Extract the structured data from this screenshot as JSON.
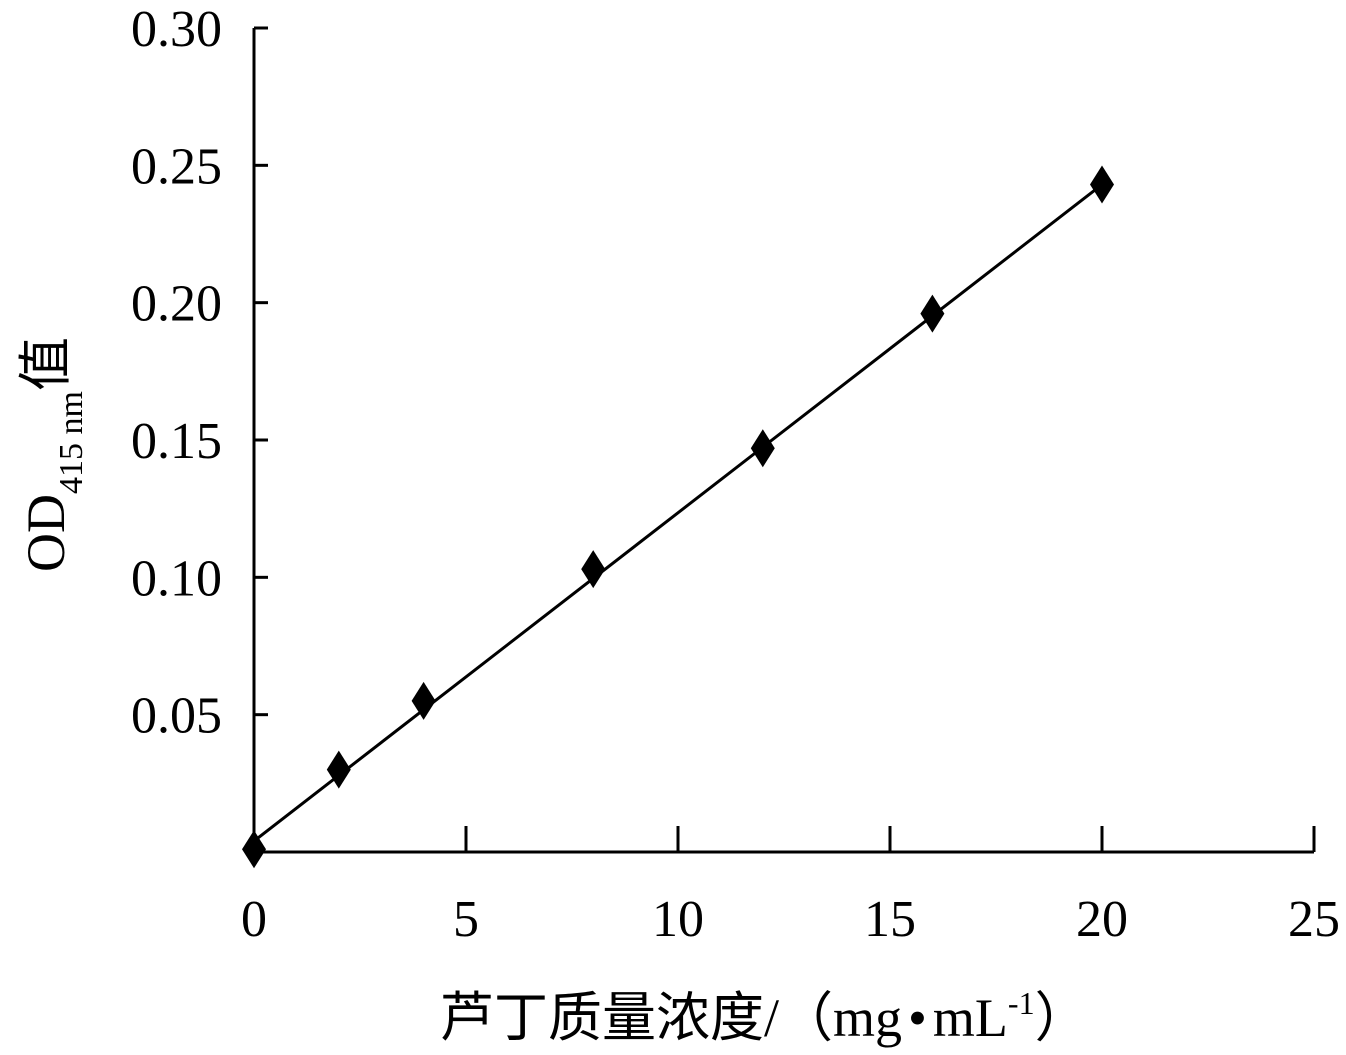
{
  "chart_data": {
    "type": "scatter",
    "x_ticks": [
      "0",
      "5",
      "10",
      "15",
      "20",
      "25"
    ],
    "y_ticks": [
      "0.30",
      "0.25",
      "0.20",
      "0.15",
      "0.10",
      "0.05"
    ],
    "xlim": [
      0,
      25
    ],
    "ylim": [
      0,
      0.3
    ],
    "xlabel": "芦丁质量浓度/（mg·mL-1）",
    "xlabel_main": "芦丁质量浓度/（mg",
    "xlabel_dot": "•",
    "xlabel_unit": "mL",
    "xlabel_sup": "-1",
    "xlabel_close": "）",
    "ylabel": "OD415 nm值",
    "ylabel_main": "OD",
    "ylabel_sub": "415 nm",
    "ylabel_suffix": "值",
    "grid": false,
    "legend": "none",
    "series": [
      {
        "x": [
          0,
          2,
          4,
          8,
          12,
          16,
          20
        ],
        "y": [
          0.001,
          0.03,
          0.055,
          0.103,
          0.147,
          0.196,
          0.243
        ],
        "marker": "diamond",
        "color": "#000000"
      }
    ],
    "fit_line": {
      "x": [
        0,
        20
      ],
      "y": [
        0.004,
        0.243
      ]
    }
  }
}
